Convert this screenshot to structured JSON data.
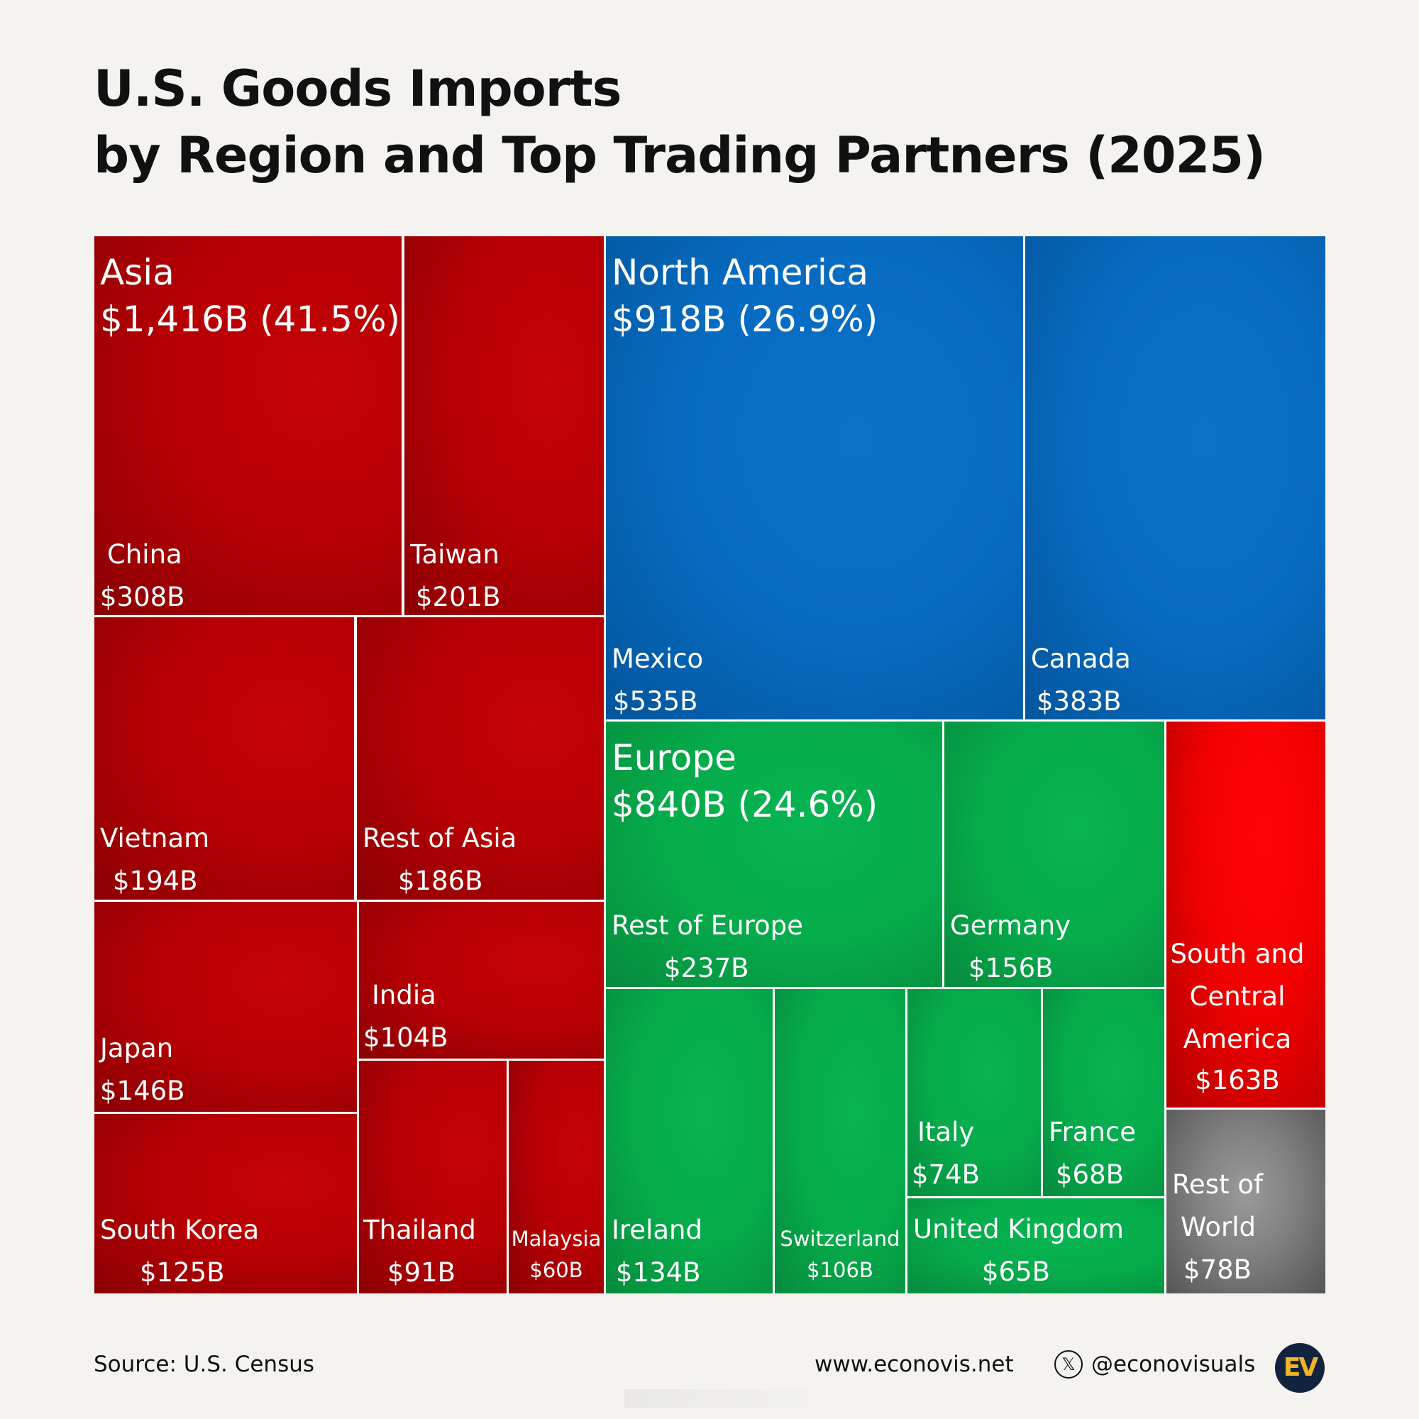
{
  "title": {
    "line1": "U.S. Goods Imports",
    "line2": "by Region and Top Trading Partners (2025)"
  },
  "chart_data": {
    "type": "treemap",
    "title": "U.S. Goods Imports by Region and Top Trading Partners (2025)",
    "unit": "$B",
    "regions": [
      {
        "name": "Asia",
        "value": 1416,
        "label": "$1,416B (41.5%)",
        "color": "#b80004",
        "children": [
          {
            "name": "China",
            "value": 308,
            "label": "$308B"
          },
          {
            "name": "Taiwan",
            "value": 201,
            "label": "$201B"
          },
          {
            "name": "Vietnam",
            "value": 194,
            "label": "$194B"
          },
          {
            "name": "Rest of Asia",
            "value": 186,
            "label": "$186B"
          },
          {
            "name": "India",
            "value": 104,
            "label": "$104B"
          },
          {
            "name": "Japan",
            "value": 146,
            "label": "$146B"
          },
          {
            "name": "South Korea",
            "value": 125,
            "label": "$125B"
          },
          {
            "name": "Thailand",
            "value": 91,
            "label": "$91B"
          },
          {
            "name": "Malaysia",
            "value": 60,
            "label": "$60B"
          }
        ]
      },
      {
        "name": "North America",
        "value": 918,
        "label": "$918B (26.9%)",
        "color": "#066bc0",
        "children": [
          {
            "name": "Mexico",
            "value": 535,
            "label": "$535B"
          },
          {
            "name": "Canada",
            "value": 383,
            "label": "$383B"
          }
        ]
      },
      {
        "name": "Europe",
        "value": 840,
        "label": "$840B (24.6%)",
        "color": "#05ab4b",
        "children": [
          {
            "name": "Rest of Europe",
            "value": 237,
            "label": "$237B"
          },
          {
            "name": "Germany",
            "value": 156,
            "label": "$156B"
          },
          {
            "name": "Ireland",
            "value": 134,
            "label": "$134B"
          },
          {
            "name": "Switzerland",
            "value": 106,
            "label": "$106B"
          },
          {
            "name": "Italy",
            "value": 74,
            "label": "$74B"
          },
          {
            "name": "France",
            "value": 68,
            "label": "$68B"
          },
          {
            "name": "United Kingdom",
            "value": 65,
            "label": "$65B"
          }
        ]
      },
      {
        "name": "South and Central America",
        "value": 163,
        "label": "$163B",
        "color": "#f20000",
        "label_lines": [
          "South and",
          "Central",
          "America"
        ]
      },
      {
        "name": "Rest of World",
        "value": 78,
        "label": "$78B",
        "color": "#808080",
        "label_lines": [
          "Rest of",
          "World"
        ]
      }
    ]
  },
  "footer": {
    "source": "Source: U.S. Census",
    "website": "www.econovis.net",
    "x_glyph": "𝕏",
    "handle": "@econovisuals",
    "logo": "EV"
  }
}
